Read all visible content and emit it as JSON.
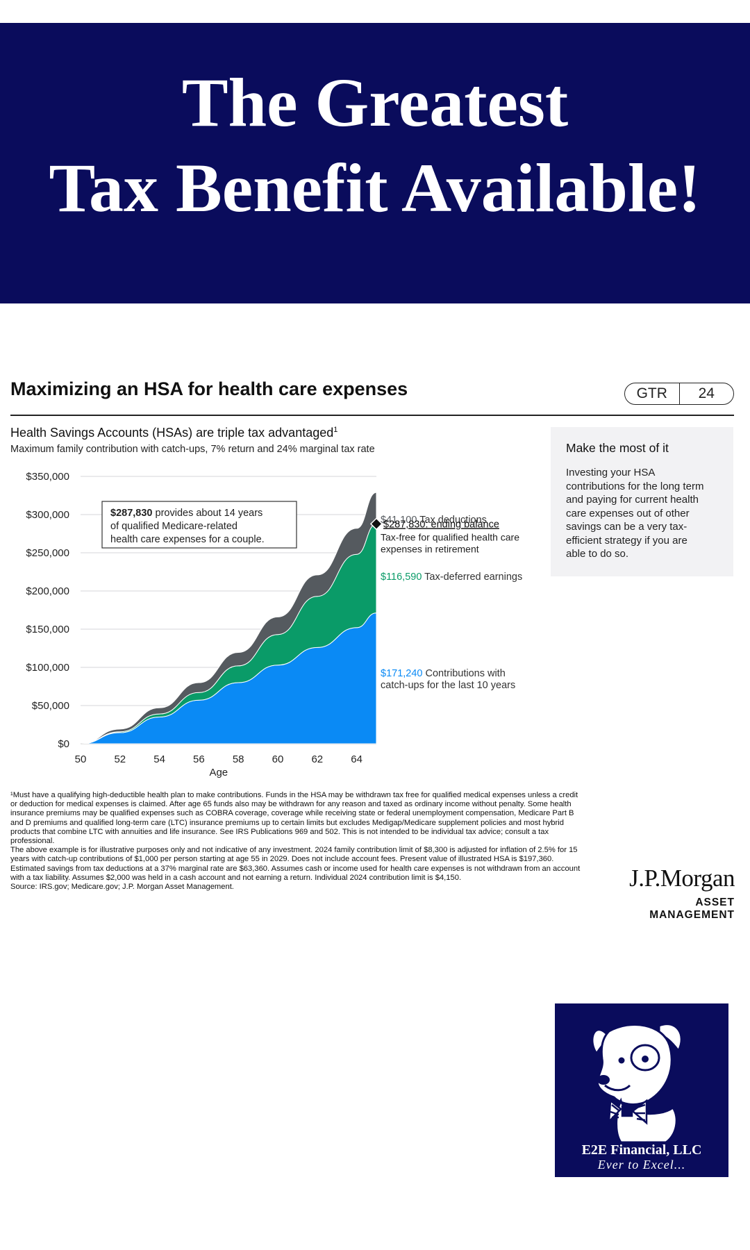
{
  "banner": {
    "line1": "The Greatest",
    "line2": "Tax Benefit Available!"
  },
  "card": {
    "title": "Maximizing an HSA for health care expenses",
    "badge_left": "GTR",
    "badge_right": "24",
    "subtitle": "Health Savings Accounts (HSAs) are triple tax advantaged",
    "subtitle_sup": "1",
    "description": "Maximum family contribution with catch-ups, 7% return and 24% marginal tax rate"
  },
  "sidebar": {
    "heading": "Make the most of it",
    "body": "Investing your HSA contributions for the long term and paying for current health care expenses out of other savings can be a very tax-efficient strategy if you are able to do so."
  },
  "chart_data": {
    "type": "area",
    "stacked": true,
    "xlabel": "Age",
    "x": [
      50,
      52,
      54,
      56,
      58,
      60,
      62,
      64,
      65
    ],
    "xticks": [
      50,
      52,
      54,
      56,
      58,
      60,
      62,
      64
    ],
    "xtick_labels": [
      "50",
      "52",
      "54",
      "56",
      "58",
      "60",
      "62",
      "64"
    ],
    "xlim": [
      50,
      65
    ],
    "ylim": [
      0,
      350000
    ],
    "yticks": [
      0,
      50000,
      100000,
      150000,
      200000,
      250000,
      300000,
      350000
    ],
    "ytick_labels": [
      "$0",
      "$50,000",
      "$100,000",
      "$150,000",
      "$200,000",
      "$250,000",
      "$300,000",
      "$350,000"
    ],
    "grid": true,
    "series": [
      {
        "key": "contrib",
        "color": "#0a8af5",
        "values": [
          0,
          14500,
          35000,
          57000,
          80000,
          103000,
          126000,
          152000,
          171240
        ]
      },
      {
        "key": "earnings",
        "color": "#0a9b68",
        "values": [
          0,
          1200,
          4000,
          10000,
          22000,
          40000,
          67000,
          96000,
          116590
        ]
      },
      {
        "key": "deductions",
        "color": "#555a5f",
        "values": [
          0,
          3500,
          8000,
          13000,
          17500,
          23000,
          28000,
          34000,
          41100
        ]
      }
    ],
    "ending_marker": {
      "x": 65,
      "y": 287830
    },
    "labels": {
      "deductions": {
        "value": "$41,100",
        "text": "Tax deductions"
      },
      "ending": {
        "value": "$287,830: ending balance",
        "line1": "Tax-free for qualified health care",
        "line2": "expenses in retirement"
      },
      "earnings": {
        "value": "$116,590",
        "text": "Tax-deferred earnings"
      },
      "contrib": {
        "value": "$171,240",
        "text1": "Contributions with",
        "text2": "catch-ups for the last 10 years"
      }
    },
    "callout": {
      "value": "$287,830",
      "line1_rest": "provides about 14 years",
      "line2": "of qualified Medicare-related",
      "line3": "health care expenses for a couple."
    }
  },
  "footnote": {
    "p1": "¹Must have a qualifying high-deductible health plan to make contributions. Funds in the HSA may be withdrawn tax free for qualified medical expenses unless a credit or deduction for medical expenses is claimed. After age 65 funds also may be withdrawn for any reason and taxed as ordinary income without penalty. Some health insurance premiums may be qualified expenses such as COBRA coverage, coverage while receiving state or federal unemployment compensation, Medicare Part B and D premiums and qualified long-term care (LTC) insurance premiums up to certain limits but excludes Medigap/Medicare supplement policies and most hybrid products that combine LTC with annuities and life insurance. See IRS Publications 969 and 502. This is not intended to be individual tax advice; consult a tax professional.",
    "p2": "The above example is for illustrative purposes only and not indicative of any investment. 2024 family contribution limit of $8,300 is adjusted for inflation of 2.5% for 15 years with catch-up contributions of $1,000 per person starting at age 55 in 2029. Does not include account fees. Present value of illustrated HSA is $197,360. Estimated savings from tax deductions at a 37% marginal rate are $63,360. Assumes cash or income used for health care expenses is not withdrawn from an account with a tax liability. Assumes $2,000 was held in a cash account and not earning a return. Individual 2024 contribution limit is $4,150.",
    "p3": "Source: IRS.gov; Medicare.gov; J.P. Morgan Asset Management."
  },
  "branding": {
    "jpm_name": "J.P.Morgan",
    "jpm_sub": "ASSET MANAGEMENT",
    "e2e_name": "E2E Financial, LLC",
    "e2e_tagline": "Ever to Excel..."
  }
}
